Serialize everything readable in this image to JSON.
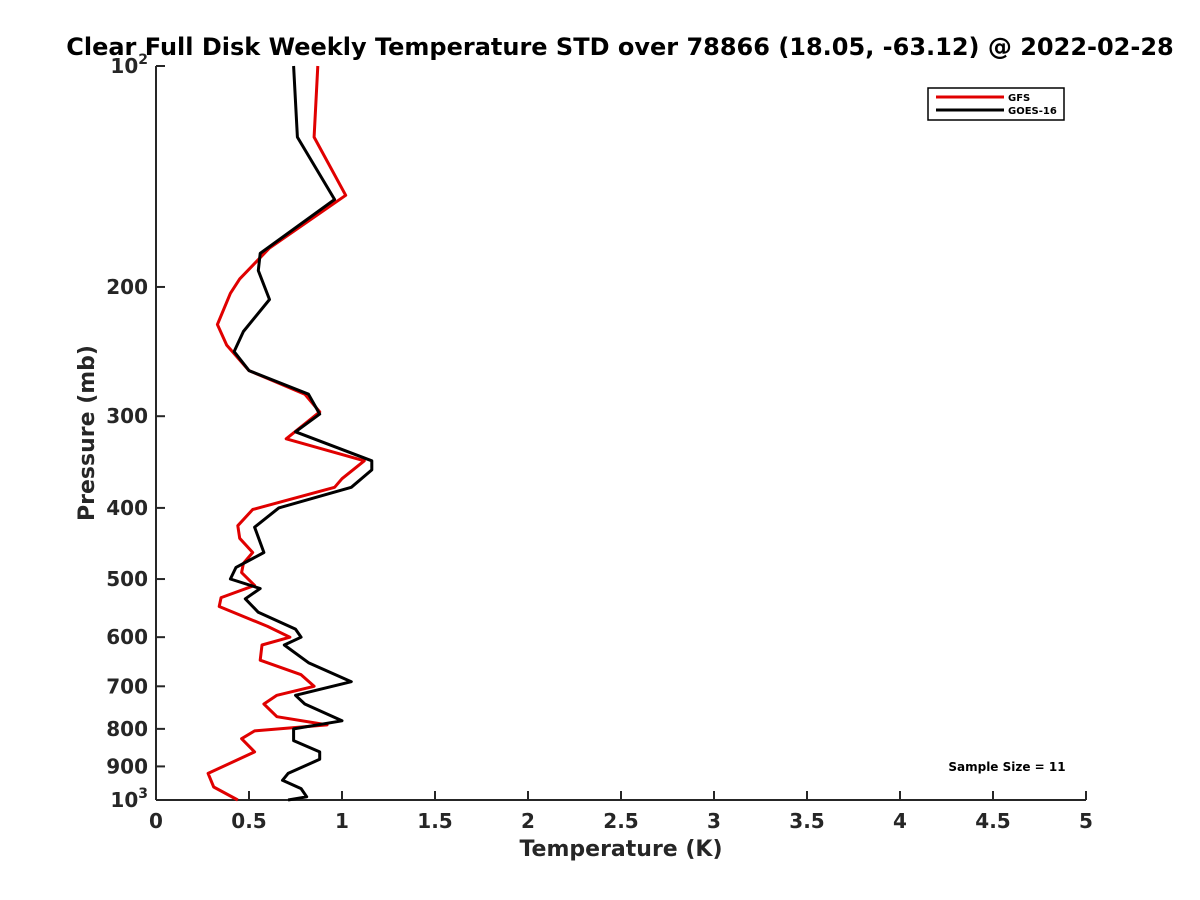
{
  "chart_data": {
    "type": "line",
    "title": "Clear Full Disk Weekly Temperature STD over 78866 (18.05, -63.12) @ 2022-02-28",
    "xlabel": "Temperature (K)",
    "ylabel": "Pressure (mb)",
    "xlim": [
      0,
      5
    ],
    "ylim": [
      100,
      1000
    ],
    "y_scale": "log",
    "y_reversed": true,
    "grid": false,
    "legend_position": "top-right",
    "x_ticks": [
      0,
      0.5,
      1,
      1.5,
      2,
      2.5,
      3,
      3.5,
      4,
      4.5,
      5
    ],
    "x_tick_labels": [
      "0",
      "0.5",
      "1",
      "1.5",
      "2",
      "2.5",
      "3",
      "3.5",
      "4",
      "4.5",
      "5"
    ],
    "y_ticks": [
      100,
      200,
      300,
      400,
      500,
      600,
      700,
      800,
      900,
      1000
    ],
    "y_tick_labels": [
      "10^2",
      "200",
      "300",
      "400",
      "500",
      "600",
      "700",
      "800",
      "900",
      "10^3"
    ],
    "annotation": "Sample Size = 11",
    "series": [
      {
        "name": "GFS",
        "color": "#e00000",
        "points": [
          [
            0.87,
            100
          ],
          [
            0.85,
            125
          ],
          [
            1.02,
            150
          ],
          [
            0.61,
            177
          ],
          [
            0.45,
            195
          ],
          [
            0.4,
            204
          ],
          [
            0.33,
            225
          ],
          [
            0.38,
            240
          ],
          [
            0.5,
            260
          ],
          [
            0.8,
            280
          ],
          [
            0.88,
            296
          ],
          [
            0.7,
            322
          ],
          [
            1.12,
            345
          ],
          [
            1.0,
            365
          ],
          [
            0.96,
            375
          ],
          [
            0.52,
            402
          ],
          [
            0.44,
            423
          ],
          [
            0.45,
            440
          ],
          [
            0.52,
            460
          ],
          [
            0.47,
            476
          ],
          [
            0.46,
            490
          ],
          [
            0.53,
            510
          ],
          [
            0.35,
            530
          ],
          [
            0.34,
            545
          ],
          [
            0.6,
            580
          ],
          [
            0.72,
            600
          ],
          [
            0.57,
            615
          ],
          [
            0.56,
            645
          ],
          [
            0.78,
            675
          ],
          [
            0.85,
            700
          ],
          [
            0.65,
            720
          ],
          [
            0.58,
            740
          ],
          [
            0.65,
            770
          ],
          [
            0.92,
            790
          ],
          [
            0.53,
            805
          ],
          [
            0.46,
            825
          ],
          [
            0.53,
            860
          ],
          [
            0.28,
            920
          ],
          [
            0.31,
            960
          ],
          [
            0.44,
            1000
          ]
        ]
      },
      {
        "name": "GOES-16",
        "color": "#000000",
        "points": [
          [
            0.74,
            100
          ],
          [
            0.76,
            125
          ],
          [
            0.96,
            152
          ],
          [
            0.56,
            180
          ],
          [
            0.55,
            190
          ],
          [
            0.61,
            208
          ],
          [
            0.47,
            230
          ],
          [
            0.42,
            245
          ],
          [
            0.5,
            260
          ],
          [
            0.82,
            280
          ],
          [
            0.88,
            298
          ],
          [
            0.75,
            315
          ],
          [
            1.16,
            345
          ],
          [
            1.16,
            355
          ],
          [
            1.05,
            375
          ],
          [
            0.66,
            400
          ],
          [
            0.53,
            425
          ],
          [
            0.58,
            460
          ],
          [
            0.43,
            482
          ],
          [
            0.4,
            500
          ],
          [
            0.56,
            515
          ],
          [
            0.48,
            532
          ],
          [
            0.55,
            555
          ],
          [
            0.75,
            585
          ],
          [
            0.78,
            600
          ],
          [
            0.69,
            615
          ],
          [
            0.82,
            650
          ],
          [
            1.05,
            690
          ],
          [
            0.75,
            720
          ],
          [
            0.8,
            740
          ],
          [
            1.0,
            780
          ],
          [
            0.74,
            800
          ],
          [
            0.74,
            830
          ],
          [
            0.88,
            860
          ],
          [
            0.88,
            880
          ],
          [
            0.71,
            920
          ],
          [
            0.68,
            940
          ],
          [
            0.78,
            965
          ],
          [
            0.81,
            990
          ],
          [
            0.71,
            1000
          ]
        ]
      }
    ]
  }
}
